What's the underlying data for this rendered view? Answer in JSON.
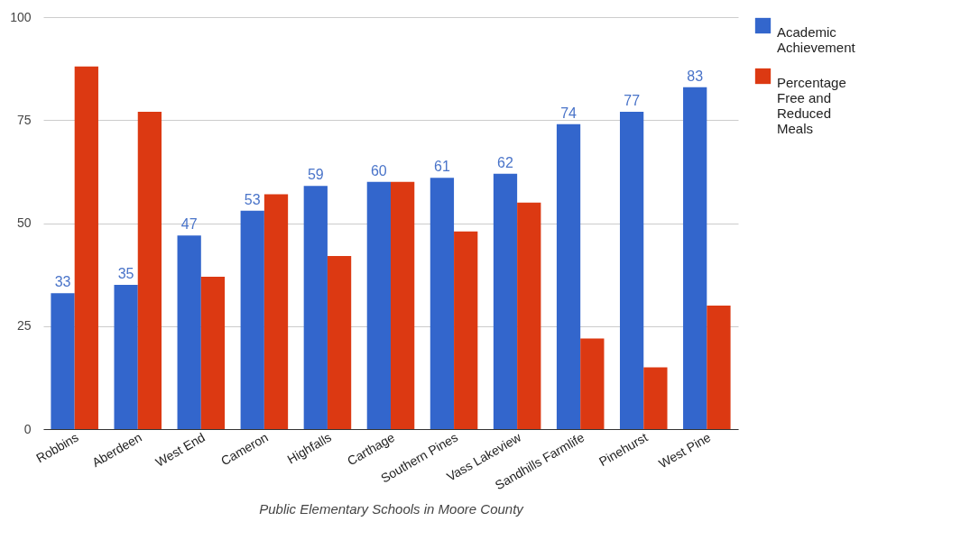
{
  "chart_data": {
    "type": "bar",
    "xlabel": "Public Elementary Schools in Moore County",
    "categories": [
      "Robbins",
      "Aberdeen",
      "West End",
      "Cameron",
      "Highfalls",
      "Carthage",
      "Southern Pines",
      "Vass Lakeview",
      "Sandhills Farmlife",
      "Pinehurst",
      "West Pine"
    ],
    "series": [
      {
        "name": "Academic Achievement",
        "color": "#3366cc",
        "values": [
          33,
          35,
          47,
          53,
          59,
          60,
          61,
          62,
          74,
          77,
          83
        ],
        "value_labels": [
          "33",
          "35",
          "47",
          "53",
          "59",
          "60",
          "61",
          "62",
          "74",
          "77",
          "83"
        ]
      },
      {
        "name": "Percentage Free and Reduced Meals",
        "color": "#dc3912",
        "values": [
          88,
          77,
          37,
          57,
          42,
          60,
          48,
          55,
          22,
          15,
          30
        ]
      }
    ],
    "ylim": [
      0,
      100
    ],
    "yticks": [
      0,
      25,
      50,
      75,
      100
    ],
    "grid": "y",
    "legend": "top right"
  }
}
